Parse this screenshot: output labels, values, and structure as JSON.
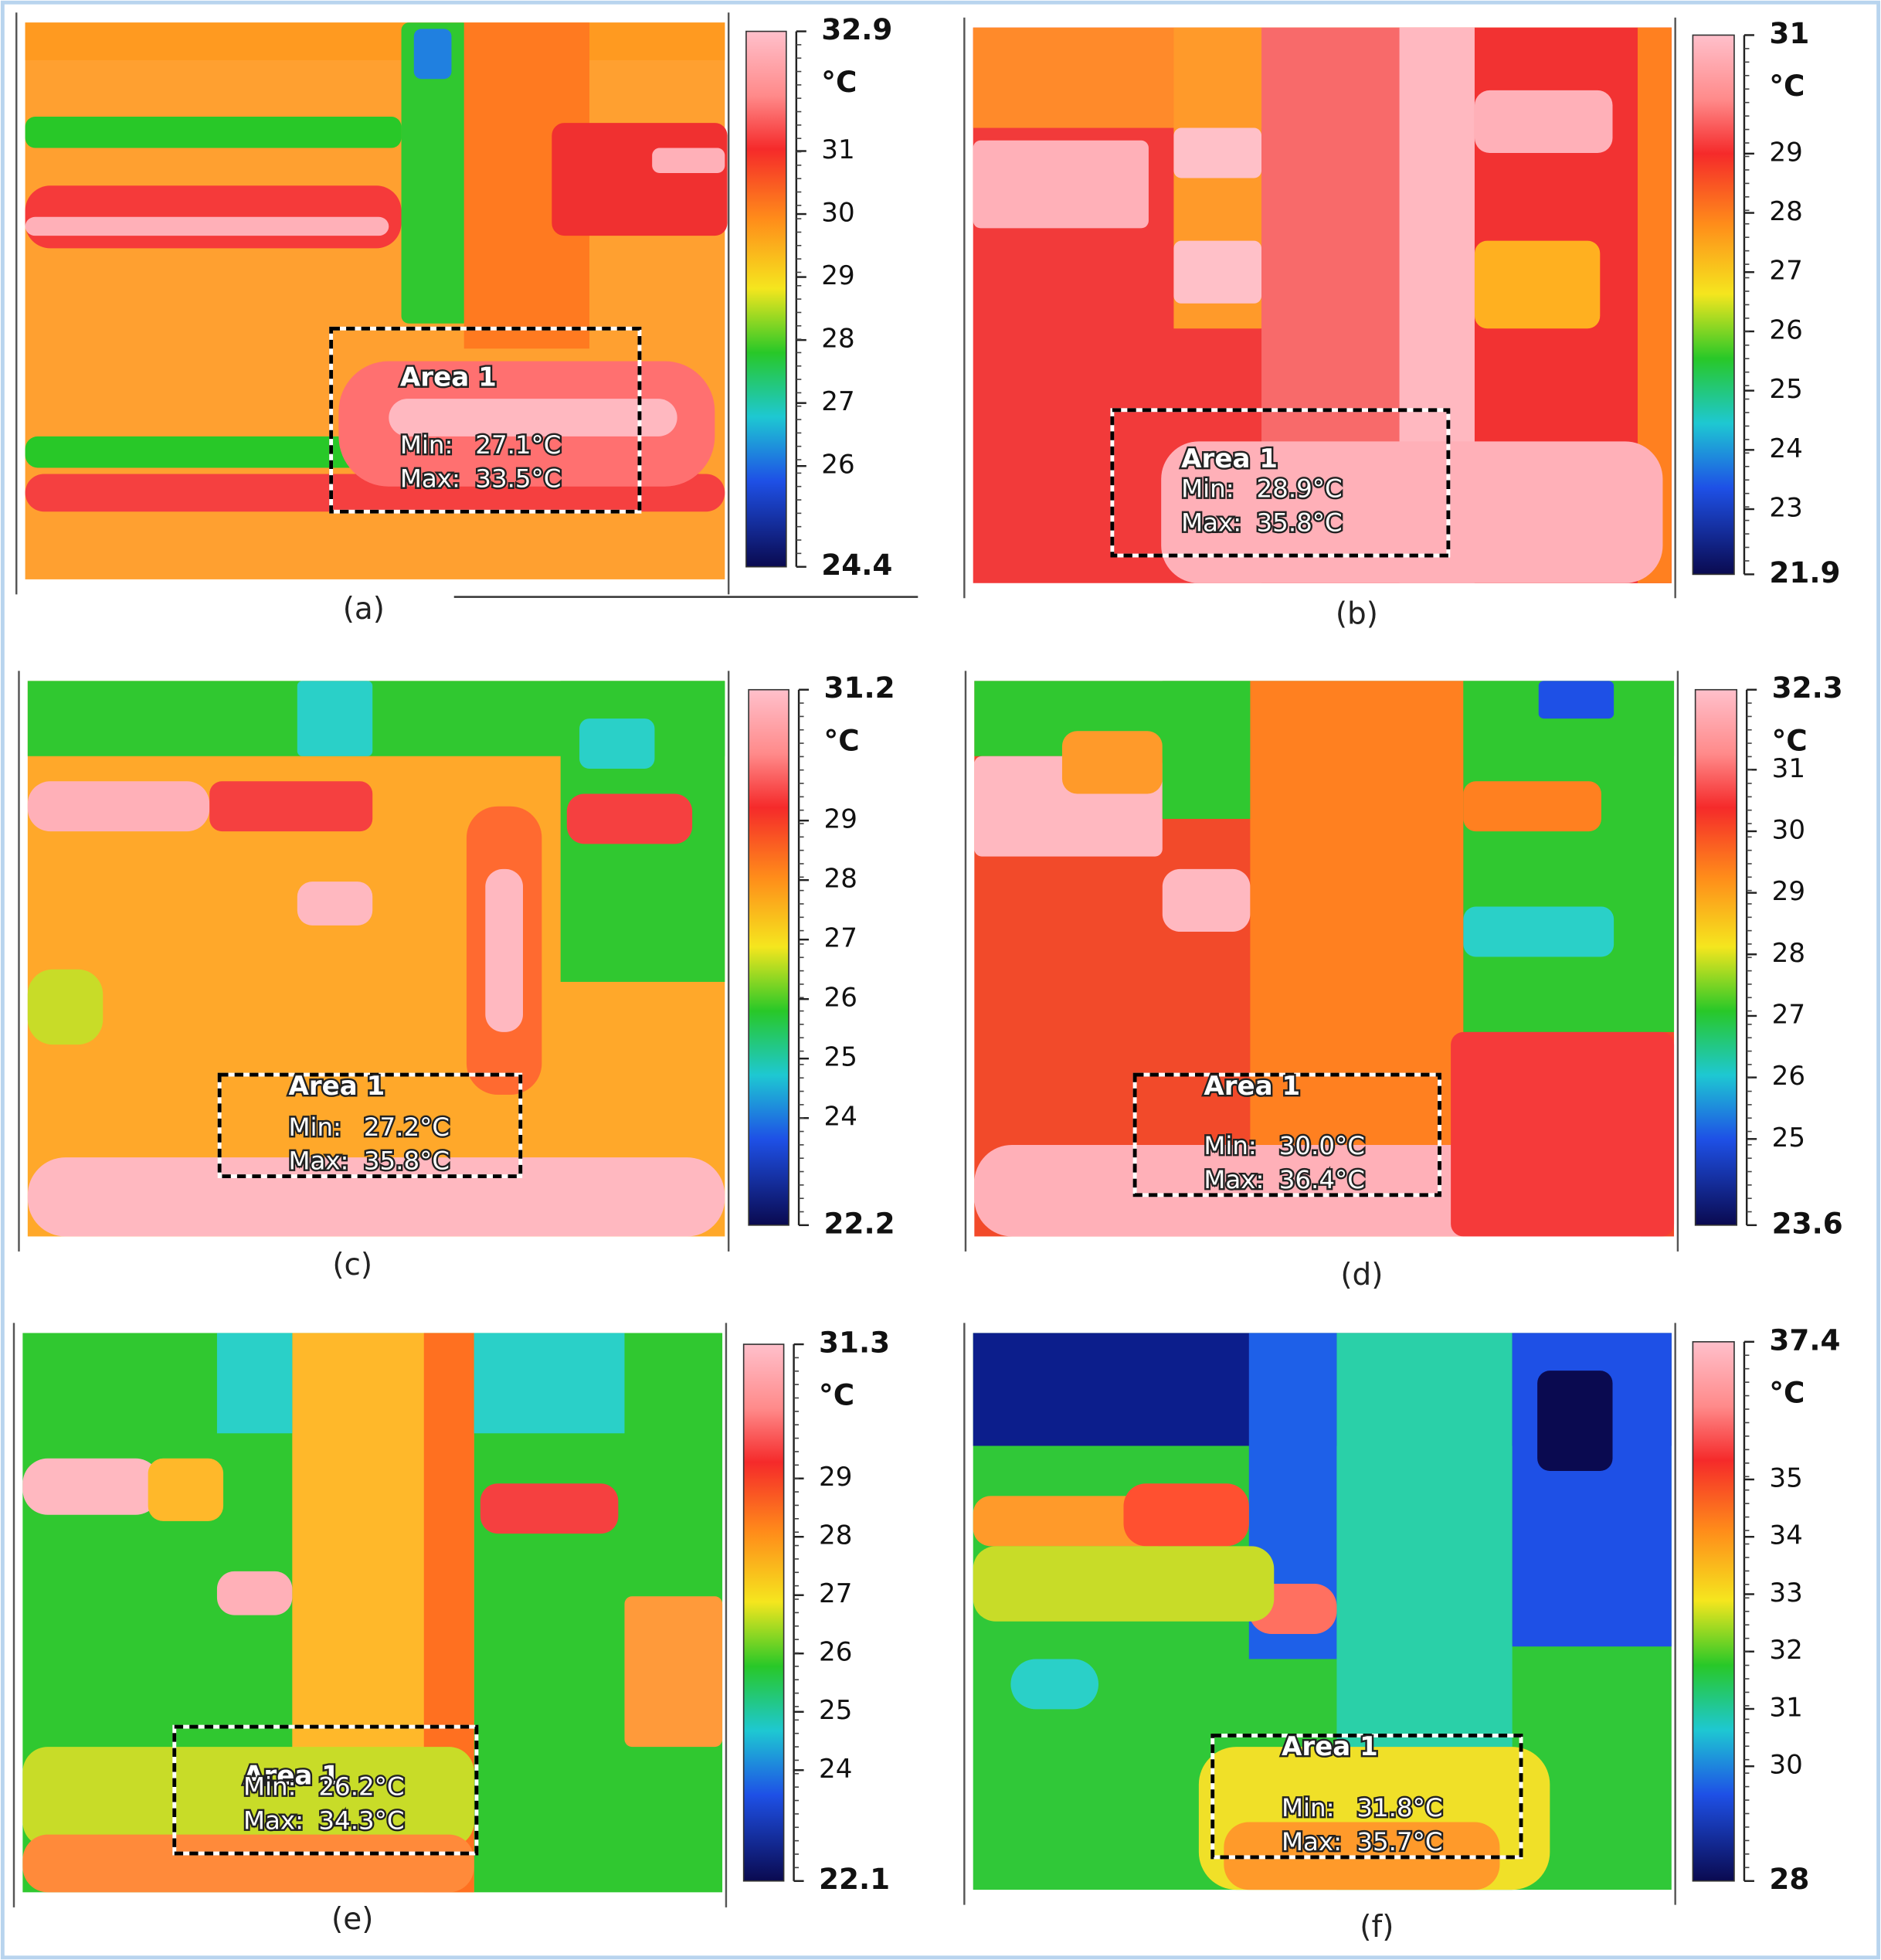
{
  "panels": [
    {
      "label": "(a)",
      "colorbar": {
        "max": 32.9,
        "min": 24.4,
        "unit": "°C",
        "ticks": [
          31,
          30,
          29,
          28,
          27,
          26
        ]
      },
      "area": {
        "title": "Area 1",
        "min_label": "Min:",
        "min_value": "27.1°C",
        "max_label": "Max:",
        "max_value": "33.5°C"
      }
    },
    {
      "label": "(b)",
      "colorbar": {
        "max": 31,
        "min": 21.9,
        "unit": "°C",
        "ticks": [
          29,
          28,
          27,
          26,
          25,
          24,
          23
        ]
      },
      "area": {
        "title": "Area 1",
        "min_label": "Min:",
        "min_value": "28.9°C",
        "max_label": "Max:",
        "max_value": "35.8°C"
      }
    },
    {
      "label": "(c)",
      "colorbar": {
        "max": 31.2,
        "min": 22.2,
        "unit": "°C",
        "ticks": [
          29,
          28,
          27,
          26,
          25,
          24
        ]
      },
      "area": {
        "title": "Area 1",
        "min_label": "Min:",
        "min_value": "27.2°C",
        "max_label": "Max:",
        "max_value": "35.8°C"
      }
    },
    {
      "label": "(d)",
      "colorbar": {
        "max": 32.3,
        "min": 23.6,
        "unit": "°C",
        "ticks": [
          31,
          30,
          29,
          28,
          27,
          26,
          25
        ]
      },
      "area": {
        "title": "Area 1",
        "min_label": "Min:",
        "min_value": "30.0°C",
        "max_label": "Max:",
        "max_value": "36.4°C"
      }
    },
    {
      "label": "(e)",
      "colorbar": {
        "max": 31.3,
        "min": 22.1,
        "unit": "°C",
        "ticks": [
          29,
          28,
          27,
          26,
          25,
          24
        ]
      },
      "area": {
        "title": "Area 1",
        "min_label": "Min:",
        "min_value": "26.2°C",
        "max_label": "Max:",
        "max_value": "34.3°C"
      }
    },
    {
      "label": "(f)",
      "colorbar": {
        "max": 37.4,
        "min": 28,
        "unit": "°C",
        "ticks": [
          35,
          34,
          33,
          32,
          31,
          30
        ]
      },
      "area": {
        "title": "Area 1",
        "min_label": "Min:",
        "min_value": "31.8°C",
        "max_label": "Max:",
        "max_value": "35.7°C"
      }
    }
  ]
}
